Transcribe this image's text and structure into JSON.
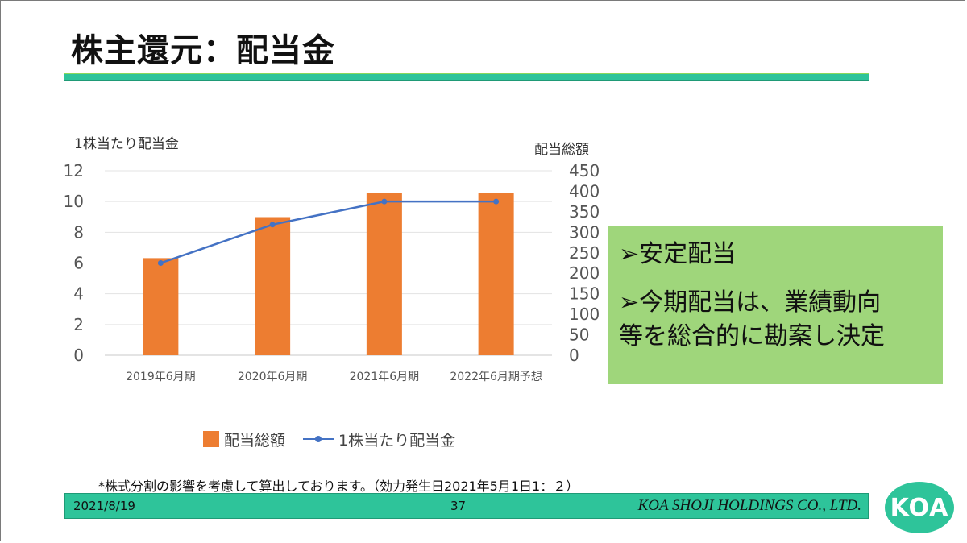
{
  "slide": {
    "title": "株主還元：配当金",
    "footnote": "*株式分割の影響を考慮して算出しております。（効力発生日2021年5月1日1：２）",
    "footer": {
      "date": "2021/8/19",
      "page": "37",
      "company": "KOA SHOJI HOLDINGS CO., LTD."
    },
    "logo_text": "KOA"
  },
  "callout": {
    "line1": "➢安定配当",
    "line2": "➢今期配当は、業績動向",
    "line3": "等を総合的に勘案し決定",
    "background": "#9fd67b"
  },
  "colors": {
    "bar": "#ed7d31",
    "line": "#4472c4",
    "accent": "#2ec49a"
  },
  "chart_data": {
    "type": "bar",
    "combo": "bar + line (secondary axis)",
    "categories": [
      "2019年6月期",
      "2020年6月期",
      "2021年6月期",
      "2022年6月期予想"
    ],
    "left_axis": {
      "title": "1株当たり配当金",
      "ylim": [
        0,
        12
      ],
      "ticks": [
        "0",
        "2",
        "4",
        "6",
        "8",
        "10",
        "12"
      ]
    },
    "right_axis": {
      "title": "配当総額",
      "ylim": [
        0,
        450
      ],
      "ticks": [
        "0",
        "50",
        "100",
        "150",
        "200",
        "250",
        "300",
        "350",
        "400",
        "450"
      ]
    },
    "series": [
      {
        "name": "配当総額",
        "kind": "bar",
        "axis": "right",
        "values": [
          237,
          337,
          395,
          395
        ]
      },
      {
        "name": "1株当たり配当金",
        "kind": "line",
        "axis": "left",
        "values": [
          6.0,
          8.5,
          10.0,
          10.0
        ]
      }
    ],
    "legend": "bottom",
    "grid": true
  }
}
